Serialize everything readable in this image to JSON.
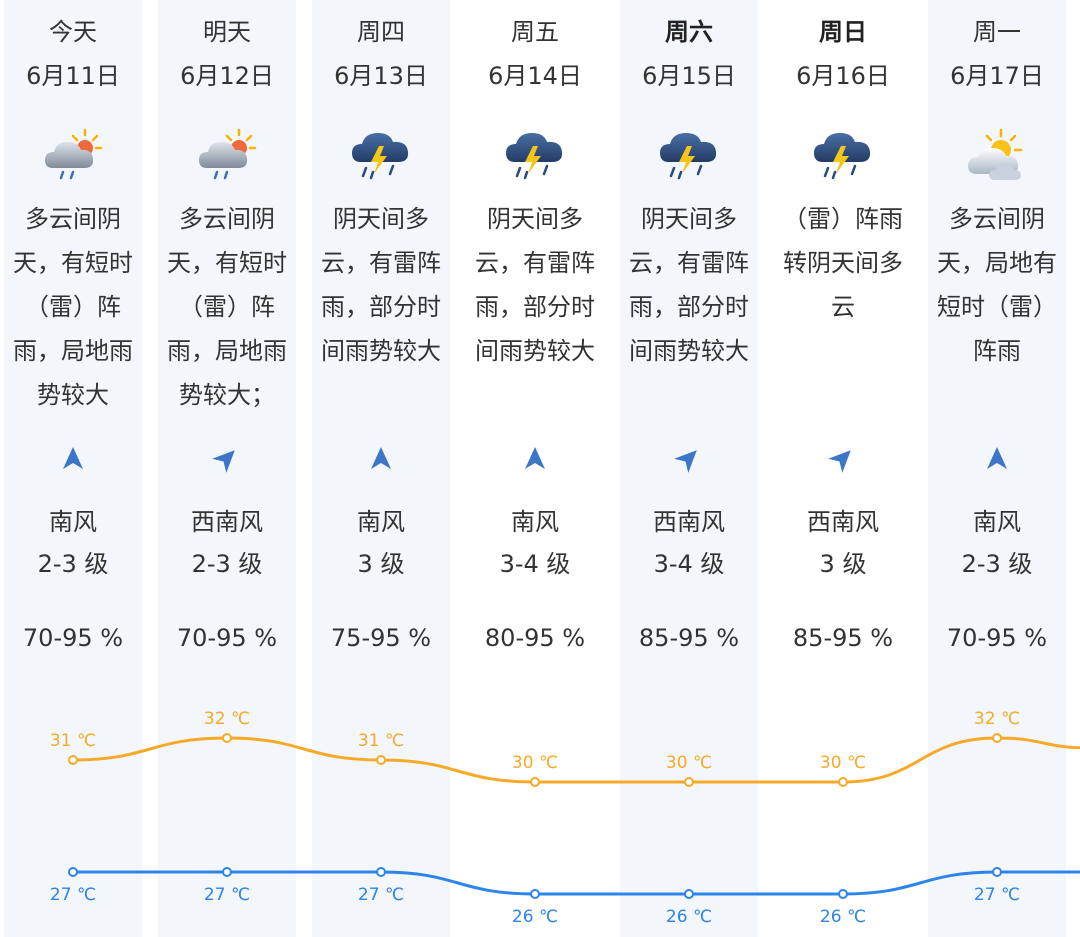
{
  "days": [
    {
      "weekday": "今天",
      "date": "6月11日",
      "bold": false,
      "highlight": true,
      "icon": "cloudy-sun-rain-icon",
      "desc": "多云间阴天，有短时（雷）阵雨，局地雨势较大",
      "wind_dir_icon": "wind-arrow-south-icon",
      "wind_rot": 0,
      "wind_dir": "南风",
      "wind_level": "2-3 级",
      "humidity": "70-95 %"
    },
    {
      "weekday": "明天",
      "date": "6月12日",
      "bold": false,
      "highlight": true,
      "icon": "cloudy-sun-rain-icon",
      "desc": "多云间阴天，有短时（雷）阵雨，局地雨势较大；",
      "wind_dir_icon": "wind-arrow-southwest-icon",
      "wind_rot": 45,
      "wind_dir": "西南风",
      "wind_level": "2-3 级",
      "humidity": "70-95 %"
    },
    {
      "weekday": "周四",
      "date": "6月13日",
      "bold": false,
      "highlight": true,
      "icon": "thunderstorm-icon",
      "desc": "阴天间多云，有雷阵雨，部分时间雨势较大",
      "wind_dir_icon": "wind-arrow-south-icon",
      "wind_rot": 0,
      "wind_dir": "南风",
      "wind_level": "3 级",
      "humidity": "75-95 %"
    },
    {
      "weekday": "周五",
      "date": "6月14日",
      "bold": false,
      "highlight": false,
      "icon": "thunderstorm-icon",
      "desc": "阴天间多云，有雷阵雨，部分时间雨势较大",
      "wind_dir_icon": "wind-arrow-south-icon",
      "wind_rot": 0,
      "wind_dir": "南风",
      "wind_level": "3-4 级",
      "humidity": "80-95 %"
    },
    {
      "weekday": "周六",
      "date": "6月15日",
      "bold": true,
      "highlight": true,
      "icon": "thunderstorm-icon",
      "desc": "阴天间多云，有雷阵雨，部分时间雨势较大",
      "wind_dir_icon": "wind-arrow-southwest-icon",
      "wind_rot": 45,
      "wind_dir": "西南风",
      "wind_level": "3-4 级",
      "humidity": "85-95 %"
    },
    {
      "weekday": "周日",
      "date": "6月16日",
      "bold": true,
      "highlight": false,
      "icon": "thunderstorm-icon",
      "desc": "（雷）阵雨转阴天间多云",
      "wind_dir_icon": "wind-arrow-southwest-icon",
      "wind_rot": 45,
      "wind_dir": "西南风",
      "wind_level": "3 级",
      "humidity": "85-95 %"
    },
    {
      "weekday": "周一",
      "date": "6月17日",
      "bold": false,
      "highlight": true,
      "icon": "partly-cloudy-icon",
      "desc": "多云间阴天，局地有短时（雷）阵雨",
      "wind_dir_icon": "wind-arrow-south-icon",
      "wind_rot": 0,
      "wind_dir": "南风",
      "wind_level": "2-3 级",
      "humidity": "70-95 %"
    }
  ],
  "chart_data": {
    "type": "line",
    "x": [
      "今天",
      "明天",
      "周四",
      "周五",
      "周六",
      "周日",
      "周一"
    ],
    "series": [
      {
        "values": [
          31,
          32,
          31,
          30,
          30,
          30,
          32
        ],
        "labels": [
          "31 ℃",
          "32 ℃",
          "31 ℃",
          "30 ℃",
          "30 ℃",
          "30 ℃",
          "32 ℃"
        ],
        "color": "#f7a928"
      },
      {
        "values": [
          27,
          27,
          27,
          26,
          26,
          26,
          27
        ],
        "labels": [
          "27 ℃",
          "27 ℃",
          "27 ℃",
          "26 ℃",
          "26 ℃",
          "26 ℃",
          "27 ℃"
        ],
        "color": "#2d84ea"
      }
    ],
    "grid": false
  },
  "colors": {
    "high": "#f7a928",
    "low": "#2d84ea",
    "column_bg": "#f3f6fb",
    "arrow": "#3d76c9"
  }
}
